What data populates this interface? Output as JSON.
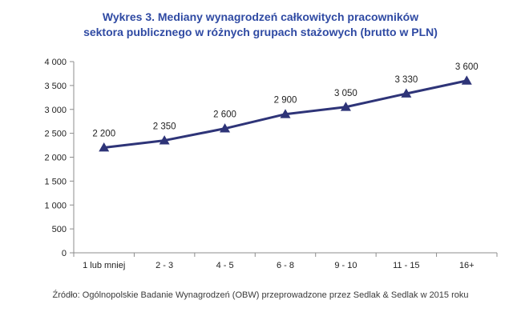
{
  "chart_data": {
    "type": "line",
    "title_lines": [
      "Wykres 3. Mediany wynagrodzeń całkowitych pracowników",
      "sektora publicznego w różnych grupach stażowych (brutto w PLN)"
    ],
    "categories": [
      "1 lub mniej",
      "2 - 3",
      "4 - 5",
      "6 - 8",
      "9 - 10",
      "11 - 15",
      "16+"
    ],
    "values": [
      2200,
      2350,
      2600,
      2900,
      3050,
      3330,
      3600
    ],
    "data_labels": [
      "2 200",
      "2 350",
      "2 600",
      "2 900",
      "3 050",
      "3 330",
      "3 600"
    ],
    "y_ticks": [
      0,
      500,
      1000,
      1500,
      2000,
      2500,
      3000,
      3500,
      4000
    ],
    "y_tick_labels": [
      "0",
      "500",
      "1 000",
      "1 500",
      "2 000",
      "2 500",
      "3 000",
      "3 500",
      "4 000"
    ],
    "ylim": [
      0,
      4000
    ],
    "grid": false,
    "legend": "none",
    "marker": "triangle",
    "line_color": "#2e3478"
  },
  "source": "Źródło: Ogólnopolskie Badanie Wynagrodzeń (OBW) przeprowadzone przez Sedlak & Sedlak w 2015 roku"
}
